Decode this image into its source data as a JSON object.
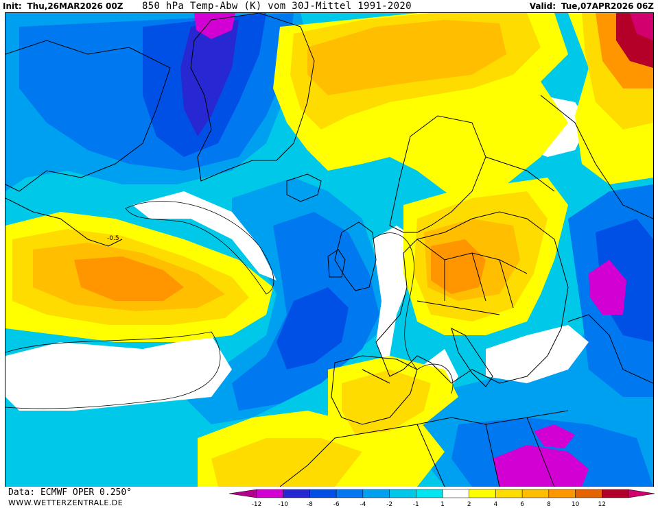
{
  "header": {
    "init_label": "Init:",
    "init_value": "Thu,26MAR2026 00Z",
    "title": "850 hPa Temp-Abw (K) vom 30J-Mittel 1991-2020",
    "valid_label": "Valid:",
    "valid_value": "Tue,07APR2026 06Z"
  },
  "footer": {
    "source": "Data: ECMWF OPER 0.250°",
    "website": "WWW.WETTERZENTRALE.DE"
  },
  "legend": {
    "ticks": [
      "-12",
      "-10",
      "-8",
      "-6",
      "-4",
      "-2",
      "-1",
      "1",
      "2",
      "4",
      "6",
      "8",
      "10",
      "12"
    ],
    "colors": [
      "#b4008c",
      "#d200d2",
      "#2828d2",
      "#0050e6",
      "#0078f0",
      "#00a0f0",
      "#00c8e8",
      "#00e6f0",
      "#ffffff",
      "#ffff00",
      "#ffdc00",
      "#ffbe00",
      "#ff9600",
      "#e66400",
      "#b40028",
      "#d2006e"
    ]
  },
  "map": {
    "isoline_label": "-0.5",
    "colors": {
      "ocean_base": "#00c8e8",
      "neg_light": "#00a0f0",
      "neg_mid": "#0078f0",
      "neg_strong": "#0050e6",
      "neg_deep": "#2828d2",
      "neg_extreme": "#d200d2",
      "neutral": "#ffffff",
      "pos_1": "#ffff00",
      "pos_2": "#ffdc00",
      "pos_4": "#ffbe00",
      "pos_6": "#ff9600",
      "pos_8": "#e66400",
      "pos_10": "#b40028",
      "pos_12": "#d2006e",
      "coastline": "#000000"
    }
  }
}
